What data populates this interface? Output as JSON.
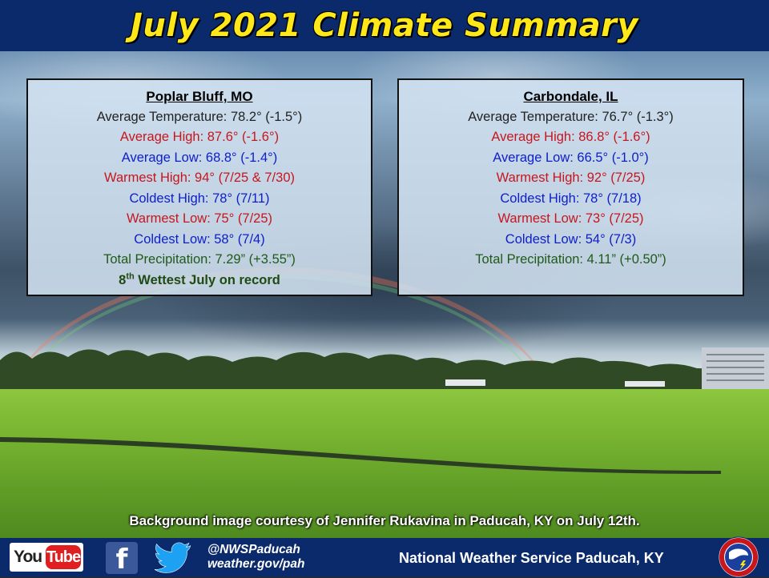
{
  "header": {
    "title": "July 2021 Climate Summary"
  },
  "stations": [
    {
      "name": "Poplar Bluff, MO",
      "avg_temp": "Average Temperature: 78.2° (-1.5°)",
      "avg_high": "Average High: 87.6° (-1.6°)",
      "avg_low": "Average Low: 68.8° (-1.4°)",
      "warmest_high": "Warmest High: 94° (7/25 & 7/30)",
      "coldest_high": "Coldest High: 78° (7/11)",
      "warmest_low": "Warmest Low: 75° (7/25)",
      "coldest_low": "Coldest Low: 58° (7/4)",
      "total_precip": "Total Precipitation: 7.29” (+3.55”)",
      "record_num": "8",
      "record_sup": "th",
      "record_text": " Wettest July on record"
    },
    {
      "name": "Carbondale, IL",
      "avg_temp": "Average Temperature: 76.7° (-1.3°)",
      "avg_high": "Average High: 86.8° (-1.6°)",
      "avg_low": "Average Low: 66.5° (-1.0°)",
      "warmest_high": "Warmest High: 92° (7/25)",
      "coldest_high": "Coldest High: 78° (7/18)",
      "warmest_low": "Warmest Low: 73° (7/25)",
      "coldest_low": "Coldest Low: 54° (7/3)",
      "total_precip": "Total Precipitation: 4.11” (+0.50”)"
    }
  ],
  "credit": "Background image courtesy of Jennifer Rukavina in Paducah, KY on July 12th.",
  "footer": {
    "youtube_you": "You",
    "youtube_tube": "Tube",
    "facebook_glyph": "f",
    "social_handle": "@NWSPaducah",
    "website": "weather.gov/pah",
    "office_name": "National Weather Service Paducah, KY"
  },
  "colors": {
    "title_bar": "#0b2a6b",
    "title_text": "#ffe81a",
    "high_red": "#c8161d",
    "low_blue": "#1020c8",
    "precip_green": "#1f5a1a"
  }
}
